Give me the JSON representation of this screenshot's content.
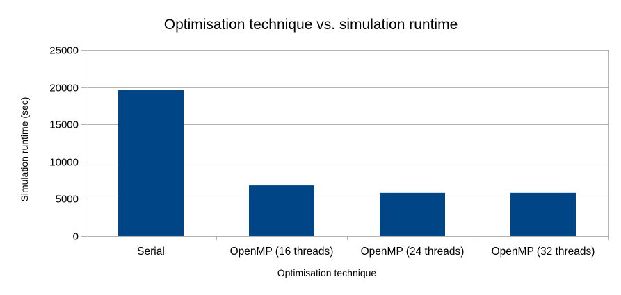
{
  "chart_data": {
    "type": "bar",
    "title": "Optimisation technique vs. simulation runtime",
    "xlabel": "Optimisation technique",
    "ylabel": "Simulation runtime (sec)",
    "categories": [
      "Serial",
      "OpenMP (16 threads)",
      "OpenMP (24 threads)",
      "OpenMP (32 threads)"
    ],
    "values": [
      19600,
      6800,
      5800,
      5800
    ],
    "ylim": [
      0,
      25000
    ],
    "yticks": [
      0,
      5000,
      10000,
      15000,
      20000,
      25000
    ],
    "grid": true,
    "legend": "none",
    "bar_color": "#004586"
  }
}
